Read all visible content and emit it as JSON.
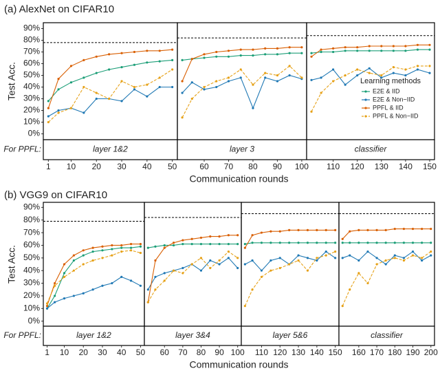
{
  "chart_data": [
    {
      "type": "line",
      "title": "(a) AlexNet on CIFAR10",
      "ylabel": "Test Acc.",
      "xlabel": "Communication rounds",
      "strip_title": "For PPFL:",
      "ylim": [
        -5,
        95
      ],
      "yticks": [
        {
          "value": 0,
          "label": "0%"
        },
        {
          "value": 10,
          "label": "10%"
        },
        {
          "value": 20,
          "label": "20%"
        },
        {
          "value": 30,
          "label": "30%"
        },
        {
          "value": 40,
          "label": "40%"
        },
        {
          "value": 50,
          "label": "50%"
        },
        {
          "value": 60,
          "label": "60%"
        },
        {
          "value": 70,
          "label": "70%"
        },
        {
          "value": 80,
          "label": "80%"
        },
        {
          "value": 90,
          "label": "90%"
        }
      ],
      "legend_title": "Learning methods",
      "series": [
        {
          "name": "E2E & IID",
          "color": "#1b9e77"
        },
        {
          "name": "E2E & Non−IID",
          "color": "#1f78b4"
        },
        {
          "name": "PPFL & IID",
          "color": "#d95f02"
        },
        {
          "name": "PPFL & Non−IID",
          "color": "#e6a117",
          "dashed": true
        }
      ],
      "panels": [
        {
          "label": "layer 1&2",
          "xlim": [
            -1,
            52
          ],
          "xticks": [
            1,
            10,
            20,
            30,
            40,
            50
          ],
          "reference": 78,
          "x": [
            1,
            5,
            10,
            15,
            20,
            25,
            30,
            35,
            40,
            45,
            50
          ],
          "values": [
            [
              28,
              38,
              44,
              48,
              52,
              55,
              57,
              59,
              61,
              62,
              63
            ],
            [
              15,
              20,
              22,
              18,
              30,
              30,
              28,
              38,
              32,
              40,
              40
            ],
            [
              22,
              47,
              58,
              63,
              66,
              68,
              69,
              70,
              71,
              71,
              72
            ],
            [
              10,
              18,
              22,
              40,
              35,
              30,
              45,
              40,
              42,
              48,
              55
            ]
          ]
        },
        {
          "label": "layer 3",
          "xlim": [
            49,
            102
          ],
          "xticks": [
            60,
            70,
            80,
            90,
            100
          ],
          "reference": 82,
          "x": [
            51,
            55,
            60,
            65,
            70,
            75,
            80,
            85,
            90,
            95,
            100
          ],
          "values": [
            [
              63,
              64,
              65,
              66,
              66,
              67,
              67,
              68,
              68,
              69,
              69
            ],
            [
              35,
              44,
              38,
              40,
              45,
              48,
              22,
              48,
              45,
              50,
              47
            ],
            [
              45,
              64,
              68,
              70,
              71,
              72,
              72,
              73,
              73,
              74,
              74
            ],
            [
              14,
              30,
              40,
              45,
              48,
              55,
              42,
              52,
              50,
              58,
              48
            ]
          ]
        },
        {
          "label": "classifier",
          "xlim": [
            99,
            152
          ],
          "xticks": [
            110,
            120,
            130,
            140,
            150
          ],
          "reference": 84,
          "x": [
            101,
            105,
            110,
            115,
            120,
            125,
            130,
            135,
            140,
            145,
            150
          ],
          "values": [
            [
              69,
              70,
              70,
              71,
              71,
              71,
              71,
              71,
              71,
              72,
              72
            ],
            [
              46,
              48,
              55,
              42,
              50,
              56,
              48,
              52,
              50,
              55,
              52
            ],
            [
              66,
              72,
              73,
              74,
              74,
              75,
              75,
              75,
              75,
              76,
              76
            ],
            [
              19,
              35,
              45,
              50,
              55,
              52,
              50,
              57,
              55,
              58,
              58
            ]
          ]
        }
      ]
    },
    {
      "type": "line",
      "title": "(b) VGG9 on CIFAR10",
      "ylabel": "Test Acc.",
      "xlabel": "Communication rounds",
      "strip_title": "For PPFL:",
      "ylim": [
        -4,
        94
      ],
      "yticks": [
        {
          "value": 0,
          "label": "0%"
        },
        {
          "value": 10,
          "label": "10%"
        },
        {
          "value": 20,
          "label": "20%"
        },
        {
          "value": 30,
          "label": "30%"
        },
        {
          "value": 40,
          "label": "40%"
        },
        {
          "value": 50,
          "label": "50%"
        },
        {
          "value": 60,
          "label": "60%"
        },
        {
          "value": 70,
          "label": "70%"
        },
        {
          "value": 80,
          "label": "80%"
        },
        {
          "value": 90,
          "label": "90%"
        }
      ],
      "series": [
        {
          "color": "#1b9e77"
        },
        {
          "color": "#1f78b4"
        },
        {
          "color": "#d95f02"
        },
        {
          "color": "#e6a117",
          "dashed": true
        }
      ],
      "panels": [
        {
          "label": "layer 1&2",
          "xlim": [
            -1,
            52
          ],
          "xticks": [
            1,
            10,
            20,
            30,
            40,
            50
          ],
          "reference": 79,
          "x": [
            1,
            5,
            10,
            15,
            20,
            25,
            30,
            35,
            40,
            45,
            50
          ],
          "values": [
            [
              10,
              20,
              38,
              48,
              52,
              55,
              56,
              57,
              58,
              58,
              59
            ],
            [
              10,
              15,
              18,
              20,
              22,
              25,
              28,
              30,
              35,
              32,
              28
            ],
            [
              12,
              30,
              45,
              52,
              56,
              58,
              59,
              60,
              60,
              61,
              61
            ],
            [
              14,
              28,
              35,
              40,
              45,
              48,
              50,
              52,
              55,
              56,
              54
            ]
          ]
        },
        {
          "label": "layer 3&4",
          "xlim": [
            49,
            102
          ],
          "xticks": [
            60,
            70,
            80,
            90,
            100
          ],
          "reference": 82,
          "x": [
            51,
            55,
            60,
            65,
            70,
            75,
            80,
            85,
            90,
            95,
            100
          ],
          "values": [
            [
              58,
              59,
              60,
              60,
              61,
              61,
              61,
              61,
              61,
              61,
              61
            ],
            [
              25,
              35,
              38,
              40,
              42,
              45,
              40,
              48,
              45,
              50,
              42
            ],
            [
              15,
              48,
              58,
              62,
              64,
              65,
              66,
              67,
              67,
              68,
              68
            ],
            [
              15,
              25,
              32,
              40,
              38,
              45,
              50,
              42,
              48,
              55,
              50
            ]
          ]
        },
        {
          "label": "layer 5&6",
          "xlim": [
            99,
            152
          ],
          "xticks": [
            110,
            120,
            130,
            140,
            150
          ],
          "reference": 85,
          "x": [
            101,
            105,
            110,
            115,
            120,
            125,
            130,
            135,
            140,
            145,
            150
          ],
          "values": [
            [
              61,
              62,
              62,
              62,
              62,
              62,
              62,
              62,
              62,
              62,
              62
            ],
            [
              45,
              48,
              40,
              48,
              50,
              45,
              52,
              50,
              48,
              55,
              50
            ],
            [
              58,
              68,
              70,
              71,
              71,
              72,
              72,
              72,
              72,
              72,
              72
            ],
            [
              12,
              25,
              35,
              40,
              42,
              45,
              48,
              40,
              50,
              52,
              55
            ]
          ]
        },
        {
          "label": "classifier",
          "xlim": [
            149,
            202
          ],
          "xticks": [
            160,
            170,
            180,
            190,
            200
          ],
          "reference": 85,
          "x": [
            151,
            155,
            160,
            165,
            170,
            175,
            180,
            185,
            190,
            195,
            200
          ],
          "values": [
            [
              62,
              62,
              62,
              62,
              62,
              62,
              62,
              62,
              62,
              62,
              62
            ],
            [
              50,
              52,
              48,
              55,
              50,
              45,
              52,
              50,
              55,
              48,
              52
            ],
            [
              65,
              71,
              72,
              72,
              72,
              72,
              73,
              73,
              73,
              73,
              73
            ],
            [
              12,
              25,
              38,
              30,
              45,
              48,
              50,
              48,
              52,
              50,
              55
            ]
          ]
        }
      ]
    }
  ]
}
